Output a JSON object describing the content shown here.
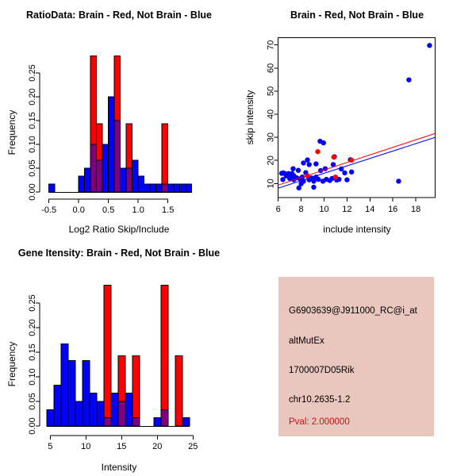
{
  "colors": {
    "red": "#FF0000",
    "blue": "#0000FF",
    "overlap": "#7F007F",
    "axis": "#000000",
    "info_bg": "#E9C6BE",
    "pval": "#CC1111"
  },
  "chart_data": [
    {
      "id": "ratio_hist",
      "type": "histogram",
      "title": "RatioData: Brain - Red, Not Brain - Blue",
      "xlabel": "Log2 Ratio Skip/Include",
      "ylabel": "Frequency",
      "series_legend": {
        "red": "Brain",
        "blue": "Not Brain"
      },
      "bin_width": 0.1,
      "xticks": [
        -0.5,
        0.0,
        0.5,
        1.0,
        1.5
      ],
      "xtick_labels": [
        "-0.5",
        "0.0",
        "0.5",
        "1.0",
        "1.5"
      ],
      "yticks": [
        0.0,
        0.05,
        0.1,
        0.15,
        0.2,
        0.25
      ],
      "ytick_labels": [
        "0.00",
        "0.05",
        "0.10",
        "0.15",
        "0.20",
        "0.25"
      ],
      "xlim": [
        -0.5,
        1.9
      ],
      "ylim": [
        0,
        0.29
      ],
      "bins": [
        {
          "x": -0.5,
          "blue": 0.017,
          "red": 0
        },
        {
          "x": 0.0,
          "blue": 0.033,
          "red": 0
        },
        {
          "x": 0.1,
          "blue": 0.05,
          "red": 0
        },
        {
          "x": 0.2,
          "blue": 0.1,
          "red": 0.286
        },
        {
          "x": 0.3,
          "blue": 0.067,
          "red": 0.143
        },
        {
          "x": 0.4,
          "blue": 0.1,
          "red": 0
        },
        {
          "x": 0.5,
          "blue": 0.2,
          "red": 0
        },
        {
          "x": 0.6,
          "blue": 0.15,
          "red": 0.286
        },
        {
          "x": 0.7,
          "blue": 0.05,
          "red": 0
        },
        {
          "x": 0.8,
          "blue": 0.05,
          "red": 0.143
        },
        {
          "x": 0.9,
          "blue": 0.067,
          "red": 0
        },
        {
          "x": 1.0,
          "blue": 0.033,
          "red": 0
        },
        {
          "x": 1.1,
          "blue": 0.017,
          "red": 0
        },
        {
          "x": 1.2,
          "blue": 0.017,
          "red": 0
        },
        {
          "x": 1.3,
          "blue": 0.017,
          "red": 0
        },
        {
          "x": 1.4,
          "blue": 0.017,
          "red": 0.143
        },
        {
          "x": 1.5,
          "blue": 0.017,
          "red": 0
        },
        {
          "x": 1.6,
          "blue": 0.017,
          "red": 0
        },
        {
          "x": 1.7,
          "blue": 0.017,
          "red": 0
        },
        {
          "x": 1.8,
          "blue": 0.017,
          "red": 0
        }
      ]
    },
    {
      "id": "intensity_scatter",
      "type": "scatter",
      "title": "Brain - Red, Not Brain - Blue",
      "xlabel": "include intensity",
      "ylabel": "skip intensity",
      "series_legend": {
        "red": "Brain",
        "blue": "Not Brain"
      },
      "xticks": [
        6,
        8,
        10,
        12,
        14,
        16,
        18
      ],
      "xtick_labels": [
        "6",
        "8",
        "10",
        "12",
        "14",
        "16",
        "18"
      ],
      "yticks": [
        10,
        20,
        30,
        40,
        50,
        60,
        70
      ],
      "ytick_labels": [
        "10",
        "20",
        "30",
        "40",
        "50",
        "60",
        "70"
      ],
      "xlim": [
        6,
        19.7
      ],
      "ylim": [
        4,
        73
      ],
      "blue_points": [
        [
          6.3,
          14.4
        ],
        [
          6.45,
          14.6
        ],
        [
          6.6,
          14.2
        ],
        [
          6.75,
          14.0
        ],
        [
          6.4,
          11.7
        ],
        [
          6.9,
          14.3
        ],
        [
          7.05,
          13.9
        ],
        [
          7.2,
          14.3
        ],
        [
          7.35,
          13.4
        ],
        [
          7.0,
          12.2
        ],
        [
          7.35,
          11.6
        ],
        [
          7.6,
          12.5
        ],
        [
          7.75,
          15.7
        ],
        [
          7.3,
          16.4
        ],
        [
          7.9,
          12.0
        ],
        [
          8.1,
          12.8
        ],
        [
          8.0,
          9.9
        ],
        [
          8.2,
          11.0
        ],
        [
          8.2,
          18.9
        ],
        [
          8.4,
          14.7
        ],
        [
          8.7,
          11.6
        ],
        [
          8.7,
          18.2
        ],
        [
          8.9,
          12.4
        ],
        [
          9.1,
          11.0
        ],
        [
          9.1,
          8.4
        ],
        [
          9.3,
          12.8
        ],
        [
          9.3,
          18.5
        ],
        [
          9.5,
          11.8
        ],
        [
          9.7,
          15.6
        ],
        [
          9.9,
          11.0
        ],
        [
          9.65,
          28.3
        ],
        [
          9.95,
          27.6
        ],
        [
          10.1,
          16.4
        ],
        [
          10.2,
          11.8
        ],
        [
          10.5,
          11.3
        ],
        [
          10.7,
          12.2
        ],
        [
          10.8,
          18.2
        ],
        [
          10.9,
          21.6
        ],
        [
          11.1,
          11.5
        ],
        [
          11.3,
          11.8
        ],
        [
          11.5,
          16.3
        ],
        [
          11.8,
          14.6
        ],
        [
          12.0,
          11.6
        ],
        [
          12.4,
          15.0
        ],
        [
          8.55,
          20.2
        ],
        [
          12.3,
          20.3
        ],
        [
          16.5,
          11.0
        ],
        [
          17.4,
          54.9
        ],
        [
          19.2,
          69.8
        ],
        [
          7.8,
          8.1
        ],
        [
          6.7,
          13.3
        ]
      ],
      "red_points": [
        [
          9.45,
          23.8
        ],
        [
          8.55,
          13.3
        ],
        [
          11.0,
          12.8
        ],
        [
          12.4,
          20.1
        ],
        [
          10.85,
          21.4
        ]
      ],
      "lines": [
        {
          "color": "blue",
          "x1": 6,
          "y1": 8.0,
          "x2": 19.7,
          "y2": 30.0
        },
        {
          "color": "red",
          "x1": 6,
          "y1": 9.3,
          "x2": 19.7,
          "y2": 31.7
        }
      ]
    },
    {
      "id": "gene_hist",
      "type": "histogram",
      "title": "Gene Itensity: Brain - Red, Not Brain - Blue",
      "xlabel": "Intensity",
      "ylabel": "Frequency",
      "series_legend": {
        "red": "Brain",
        "blue": "Not Brain"
      },
      "bin_width": 1,
      "xticks": [
        5,
        10,
        15,
        20,
        25
      ],
      "xtick_labels": [
        "5",
        "10",
        "15",
        "20",
        "25"
      ],
      "yticks": [
        0.0,
        0.05,
        0.1,
        0.15,
        0.2,
        0.25
      ],
      "ytick_labels": [
        "0.00",
        "0.05",
        "0.10",
        "0.15",
        "0.20",
        "0.25"
      ],
      "xlim": [
        4.5,
        24.5
      ],
      "ylim": [
        0,
        0.29
      ],
      "bins": [
        {
          "x": 4.5,
          "blue": 0.033,
          "red": 0
        },
        {
          "x": 5.5,
          "blue": 0.083,
          "red": 0
        },
        {
          "x": 6.5,
          "blue": 0.167,
          "red": 0
        },
        {
          "x": 7.5,
          "blue": 0.133,
          "red": 0
        },
        {
          "x": 8.5,
          "blue": 0.05,
          "red": 0
        },
        {
          "x": 9.5,
          "blue": 0.133,
          "red": 0
        },
        {
          "x": 10.5,
          "blue": 0.067,
          "red": 0
        },
        {
          "x": 11.5,
          "blue": 0.05,
          "red": 0
        },
        {
          "x": 12.5,
          "blue": 0.017,
          "red": 0.286
        },
        {
          "x": 13.5,
          "blue": 0.067,
          "red": 0
        },
        {
          "x": 14.5,
          "blue": 0.05,
          "red": 0.143
        },
        {
          "x": 15.5,
          "blue": 0.067,
          "red": 0
        },
        {
          "x": 16.5,
          "blue": 0.017,
          "red": 0.143
        },
        {
          "x": 19.5,
          "blue": 0.017,
          "red": 0
        },
        {
          "x": 20.5,
          "blue": 0.033,
          "red": 0.286
        },
        {
          "x": 22.5,
          "blue": 0.0,
          "red": 0.143
        },
        {
          "x": 23.5,
          "blue": 0.017,
          "red": 0
        }
      ]
    }
  ],
  "info_panel": {
    "lines": [
      "G6903639@J911000_RC@i_at",
      "altMutEx",
      "1700007D05Rik",
      "chr10.2635-1.2"
    ],
    "pval": "Pval: 2.000000"
  }
}
